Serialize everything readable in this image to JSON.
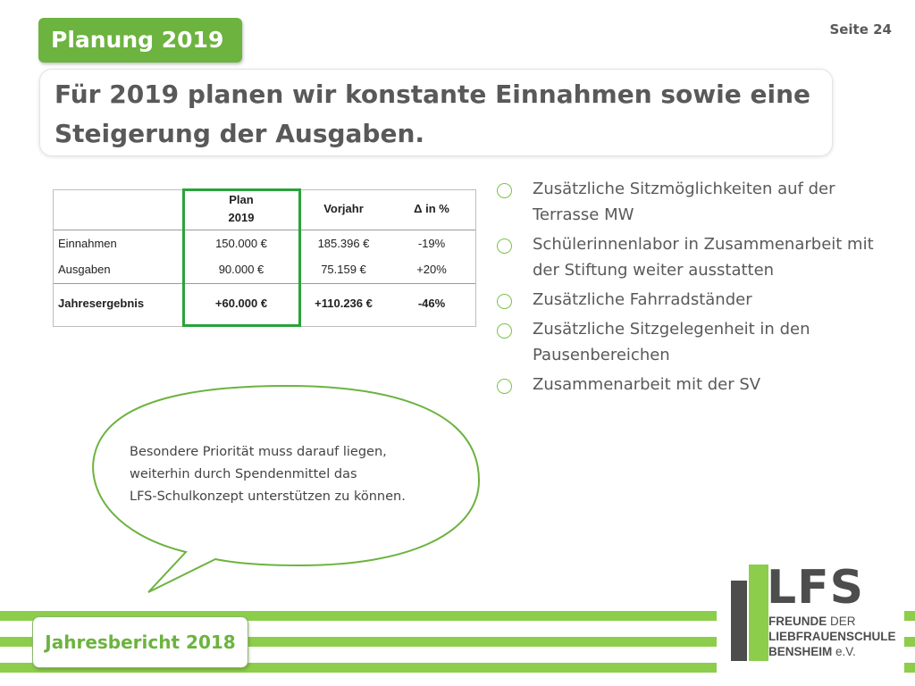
{
  "header": {
    "section_label": "Planung 2019",
    "page_number": "Seite 24",
    "headline_line1": "Für 2019 planen wir konstante Einnahmen sowie eine",
    "headline_line2": "Steigerung der Ausgaben."
  },
  "table": {
    "headers": {
      "plan_line1": "Plan",
      "plan_line2": "2019",
      "previous": "Vorjahr",
      "delta": "Δ in %"
    },
    "rows": [
      {
        "label": "Einnahmen",
        "plan": "150.000 €",
        "previous": "185.396 €",
        "delta": "-19%"
      },
      {
        "label": "Ausgaben",
        "plan": "90.000 €",
        "previous": "75.159 €",
        "delta": "+20%"
      }
    ],
    "total": {
      "label": "Jahresergebnis",
      "plan": "+60.000 €",
      "previous": "+110.236 €",
      "delta": "-46%"
    }
  },
  "bullets": [
    {
      "line1": "Zusätzliche Sitzmöglichkeiten auf der",
      "line2": "Terrasse MW"
    },
    {
      "line1": "Schülerinnenlabor in Zusammenarbeit mit",
      "line2": "der Stiftung weiter ausstatten"
    },
    {
      "line1": "Zusätzliche Fahrradständer",
      "line2": ""
    },
    {
      "line1": "Zusätzliche Sitzgelegenheit in den",
      "line2": "Pausenbereichen"
    },
    {
      "line1": "Zusammenarbeit mit der SV",
      "line2": ""
    }
  ],
  "callout": {
    "line1": "Besondere Priorität muss darauf liegen,",
    "line2": "weiterhin durch Spendenmittel das",
    "line3": "LFS-Schulkonzept unterstützen zu können."
  },
  "footer": {
    "label": "Jahresbericht 2018"
  },
  "logo": {
    "letters": "LFS",
    "line1_bold": "FREUNDE",
    "line1_rest": " DER",
    "line2": "LIEBFRAUENSCHULE",
    "line3_bold": "BENSHEIM",
    "line3_rest": " e.V."
  },
  "colors": {
    "accent_green": "#6cb33f",
    "stripe_green": "#8ccd4b",
    "highlight_green": "#2aa33a",
    "text_gray": "#595959"
  }
}
